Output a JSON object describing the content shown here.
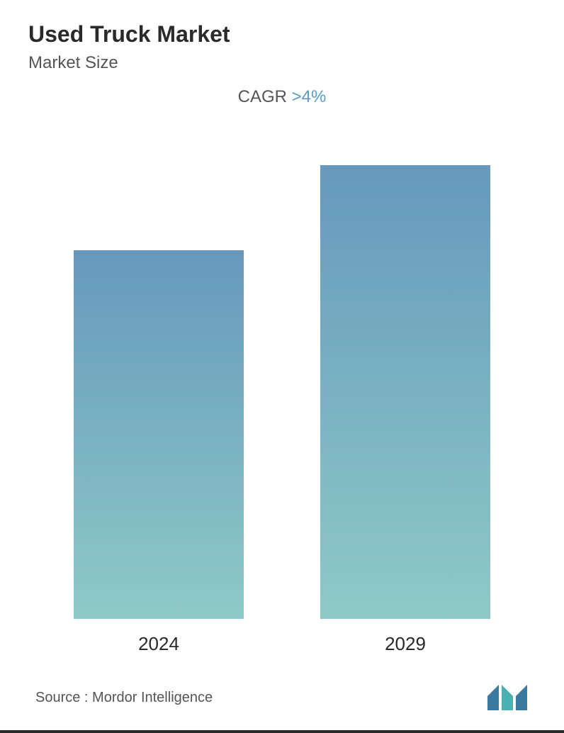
{
  "header": {
    "title": "Used Truck Market",
    "subtitle": "Market Size"
  },
  "cagr": {
    "label": "CAGR",
    "value": ">4%",
    "label_color": "#555555",
    "value_color": "#5a9bc4",
    "fontsize": 24
  },
  "chart": {
    "type": "bar",
    "categories": [
      "2024",
      "2029"
    ],
    "values": [
      520,
      640
    ],
    "max_height": 640,
    "bar_gradient_top": "#6699bd",
    "bar_gradient_bottom": "#8fc9c7",
    "bar_max_width": 240,
    "background_color": "#ffffff",
    "label_fontsize": 26,
    "label_color": "#2a2a2a"
  },
  "footer": {
    "source_text": "Source :  Mordor Intelligence",
    "source_color": "#555555",
    "source_fontsize": 20
  },
  "logo": {
    "bar_colors": [
      "#3a7a9e",
      "#4ab0b0",
      "#3a7a9e"
    ],
    "width": 60,
    "height": 40
  },
  "styling": {
    "title_fontsize": 32,
    "title_color": "#2a2a2a",
    "title_weight": 700,
    "subtitle_fontsize": 24,
    "subtitle_color": "#555555",
    "bottom_border_color": "#2a2a2a",
    "bottom_border_height": 4
  }
}
